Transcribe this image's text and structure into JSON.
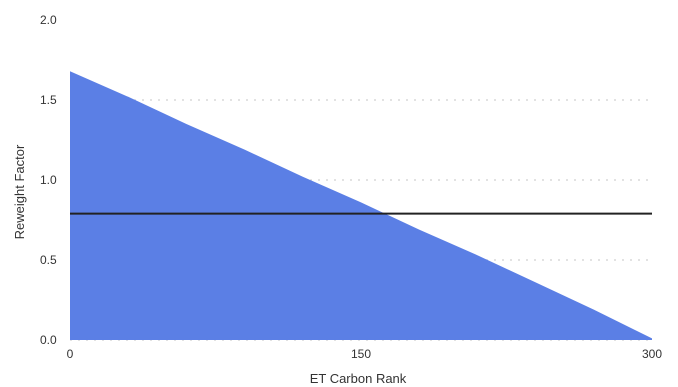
{
  "chart_data": {
    "type": "area",
    "xlabel": "ET Carbon Rank",
    "ylabel": "Reweight Factor",
    "xlim": [
      0,
      300
    ],
    "ylim": [
      0,
      2.0
    ],
    "x_ticks": [
      0,
      150,
      300
    ],
    "x_tick_labels": [
      "0",
      "150",
      "300"
    ],
    "y_ticks": [
      0.0,
      0.5,
      1.0,
      1.5,
      2.0
    ],
    "y_tick_labels": [
      "0.0",
      "0.5",
      "1.0",
      "1.5",
      "2.0"
    ],
    "grid": "horizontal dotted",
    "series": [
      {
        "x": [
          0,
          30,
          60,
          90,
          120,
          150,
          180,
          210,
          240,
          270,
          300
        ],
        "y": [
          1.68,
          1.52,
          1.35,
          1.19,
          1.02,
          0.86,
          0.69,
          0.53,
          0.36,
          0.19,
          0.01
        ],
        "color": "#5b7fe5"
      }
    ],
    "reference_line": {
      "y": 0.79,
      "color": "#222222"
    }
  }
}
